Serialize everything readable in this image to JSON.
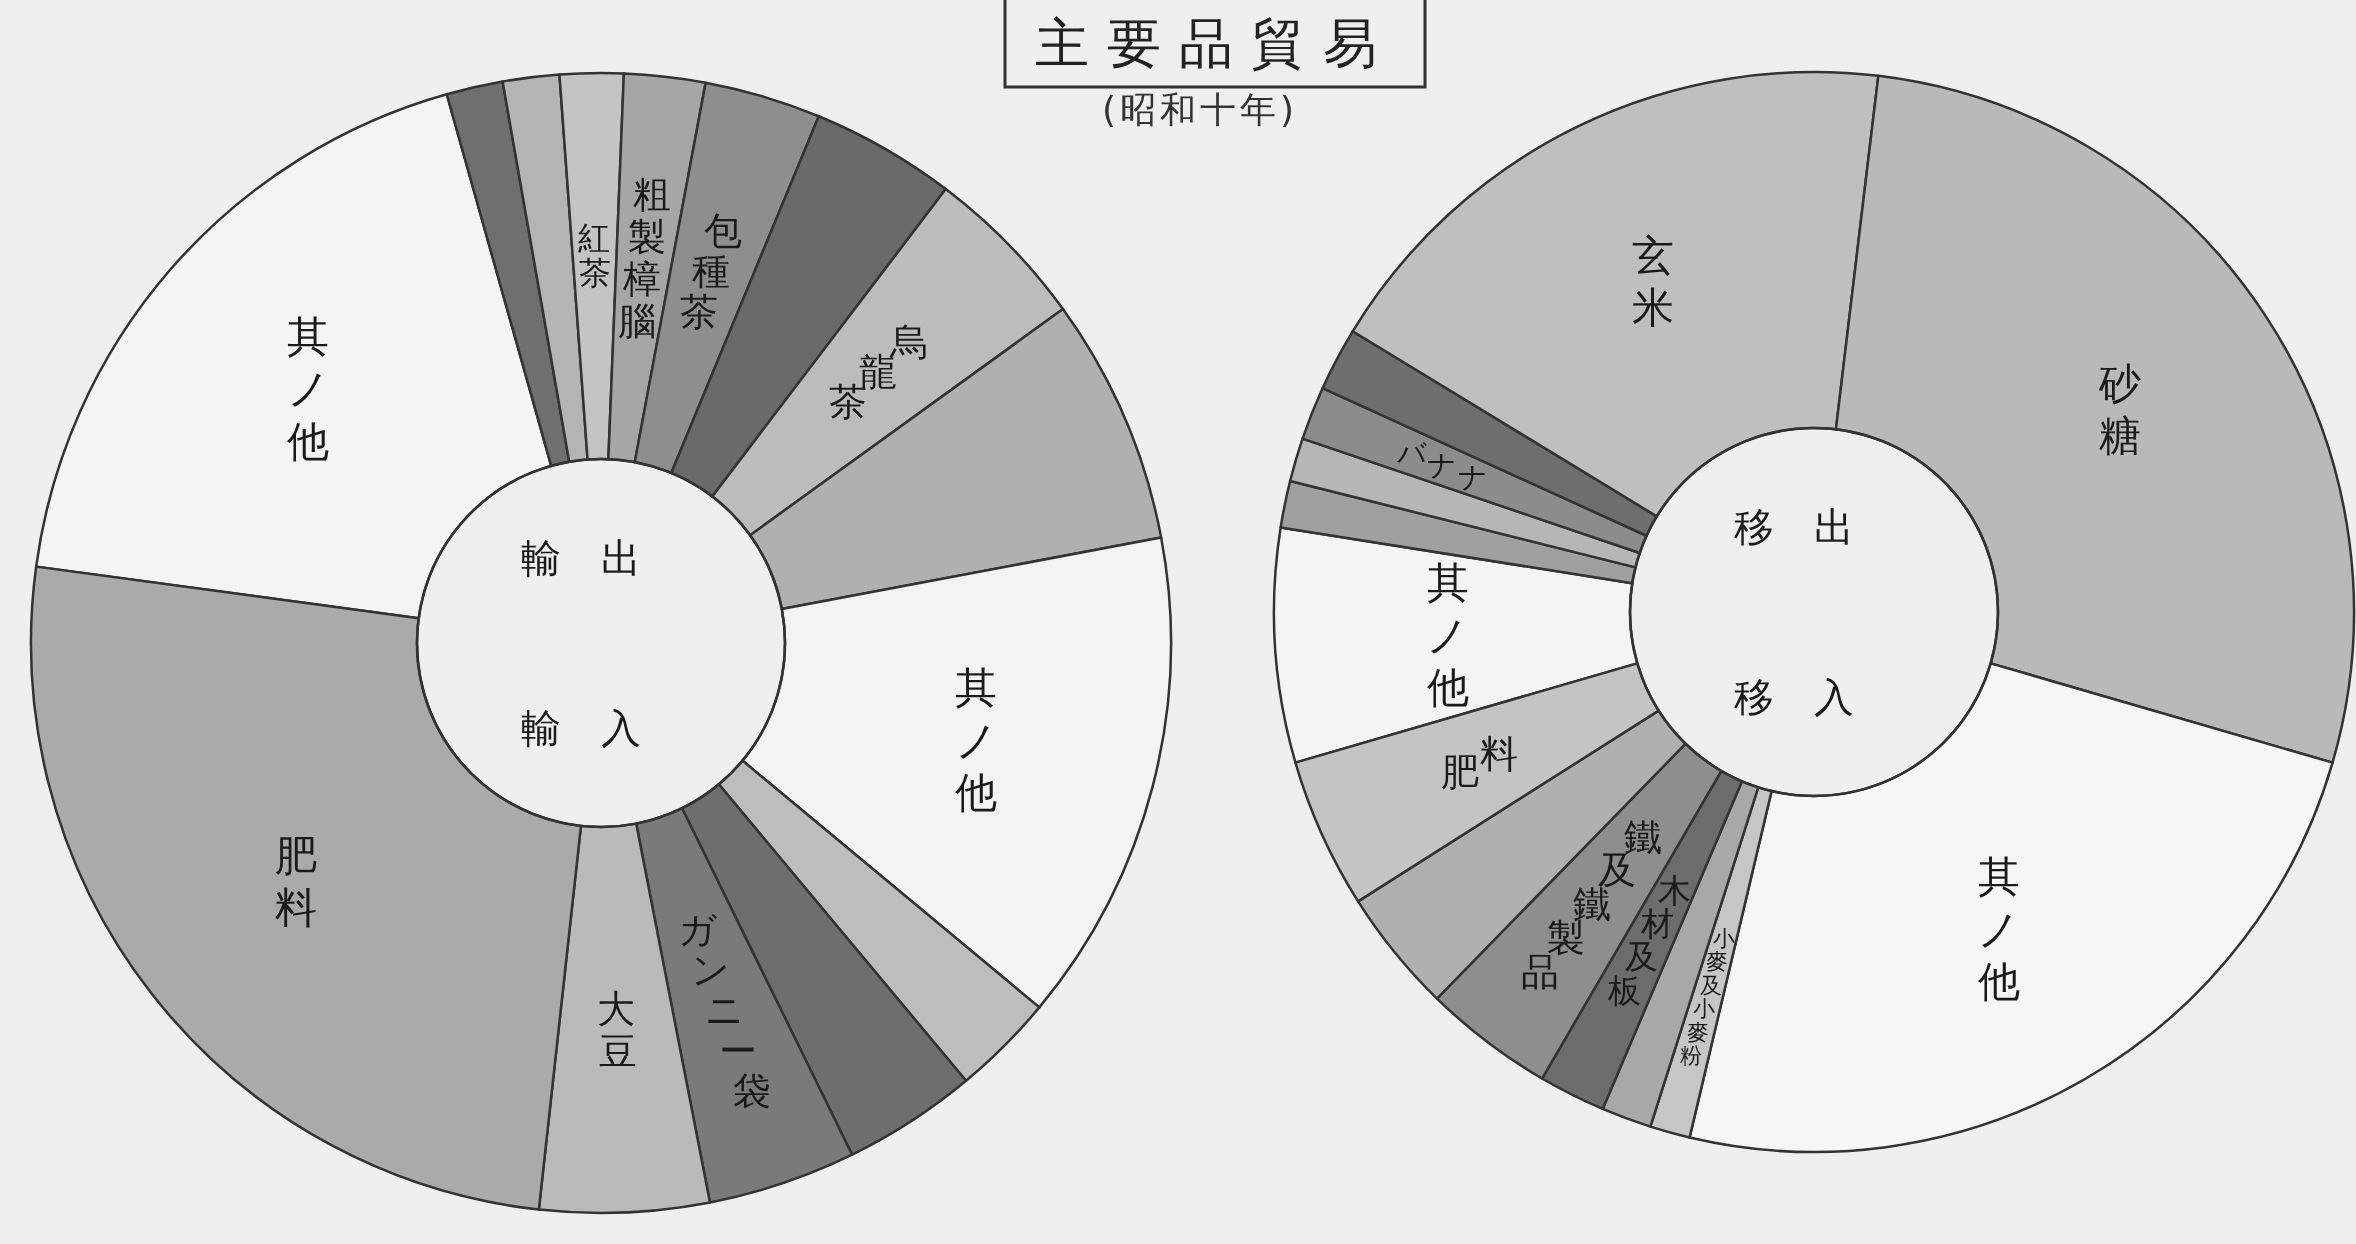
{
  "chart_data": [
    {
      "type": "donut",
      "title": "主要品貿易",
      "subtitle": "(昭和十年)",
      "annotations": [
        "輸出",
        "輸入"
      ],
      "categories": [
        "其ノ他",
        null,
        null,
        "紅茶",
        "粗製樟腦",
        "包種茶",
        null,
        "烏龍茶",
        null,
        "其ノ他",
        null,
        null,
        "ガンニー袋",
        "大豆",
        "肥料"
      ],
      "values": [
        18.5,
        1.6,
        1.6,
        1.8,
        2.3,
        3.3,
        4.1,
        4.7,
        7.0,
        14.0,
        2.9,
        3.8,
        4.2,
        4.8,
        25.4
      ],
      "colors": [
        "#f4f4f4",
        "#6f6f6f",
        "#b4b4b4",
        "#c4c4c4",
        "#a6a6a6",
        "#8e8e8e",
        "#6a6a6a",
        "#bcbcbc",
        "#b0b0b0",
        "#f3f3f3",
        "#bdbdbd",
        "#6e6e6e",
        "#7a7a7a",
        "#bababa",
        "#aaaaaa"
      ]
    },
    {
      "type": "donut",
      "annotations": [
        "移出",
        "移入"
      ],
      "categories": [
        "其ノ他",
        null,
        null,
        "バナナ",
        null,
        "玄米",
        "砂糖",
        "其ノ他",
        "小麥及小麥粉",
        null,
        "木材及板",
        "鐵及鐵製品",
        null,
        "肥料"
      ],
      "values": [
        7.0,
        1.4,
        1.3,
        1.6,
        1.9,
        18.2,
        27.6,
        24.2,
        1.2,
        1.5,
        2.0,
        3.9,
        3.7,
        4.5
      ],
      "colors": [
        "#f4f4f4",
        "#a0a0a0",
        "#b6b6b6",
        "#8c8c8c",
        "#6e6e6e",
        "#bfbfbf",
        "#b9b9b9",
        "#f6f6f6",
        "#c6c6c6",
        "#a8a8a8",
        "#6c6c6c",
        "#8e8e8e",
        "#b0b0b0",
        "#c4c4c4"
      ]
    }
  ]
}
